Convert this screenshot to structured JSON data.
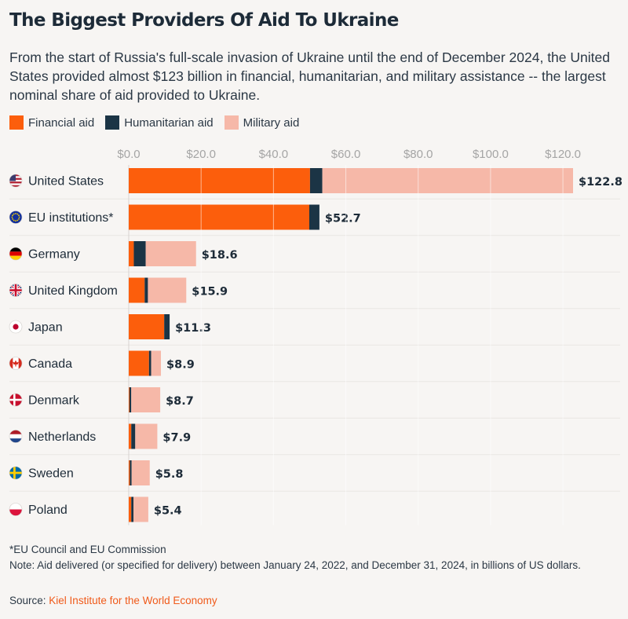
{
  "title": "The Biggest Providers Of Aid To Ukraine",
  "subtitle": "From the start of Russia's full-scale invasion of Ukraine until the end of December 2024, the United States provided almost $123 billion in financial, humanitarian, and military assistance -- the largest nominal share of aid provided to Ukraine.",
  "legend": [
    {
      "label": "Financial aid",
      "color": "#fc5e0c"
    },
    {
      "label": "Humanitarian aid",
      "color": "#1b3445"
    },
    {
      "label": "Military aid",
      "color": "#f6b8a8"
    }
  ],
  "chart_data": {
    "type": "bar",
    "orientation": "horizontal",
    "stacked": true,
    "categories": [
      "United States",
      "EU institutions*",
      "Germany",
      "United Kingdom",
      "Japan",
      "Canada",
      "Denmark",
      "Netherlands",
      "Sweden",
      "Poland"
    ],
    "flag_icons": [
      "us-flag-icon",
      "eu-flag-icon",
      "germany-flag-icon",
      "uk-flag-icon",
      "japan-flag-icon",
      "canada-flag-icon",
      "denmark-flag-icon",
      "netherlands-flag-icon",
      "sweden-flag-icon",
      "poland-flag-icon"
    ],
    "series": [
      {
        "name": "Financial aid",
        "color": "#fc5e0c",
        "values": [
          50.1,
          49.9,
          1.4,
          4.4,
          9.8,
          5.6,
          0.2,
          0.7,
          0.3,
          0.7
        ]
      },
      {
        "name": "Humanitarian aid",
        "color": "#1b3445",
        "values": [
          3.4,
          2.8,
          3.3,
          0.9,
          1.5,
          0.6,
          0.5,
          1.1,
          0.5,
          0.6
        ]
      },
      {
        "name": "Military aid",
        "color": "#f6b8a8",
        "values": [
          69.3,
          0.0,
          13.9,
          10.6,
          0.0,
          2.7,
          8.0,
          6.1,
          5.0,
          4.1
        ]
      }
    ],
    "totals": [
      122.8,
      52.7,
      18.6,
      15.9,
      11.3,
      8.9,
      8.7,
      7.9,
      5.8,
      5.4
    ],
    "total_labels": [
      "$122.8",
      "$52.7",
      "$18.6",
      "$15.9",
      "$11.3",
      "$8.9",
      "$8.7",
      "$7.9",
      "$5.8",
      "$5.4"
    ],
    "xticks": [
      0,
      20,
      40,
      60,
      80,
      100,
      120
    ],
    "xtick_labels": [
      "$0.0",
      "$20.0",
      "$40.0",
      "$60.0",
      "$80.0",
      "$100.0",
      "$120.0"
    ],
    "xlim": [
      0,
      122.8
    ],
    "grid": true,
    "legend_position": "top-left"
  },
  "footnote_1": "*EU Council and EU Commission",
  "footnote_2": "Note: Aid delivered (or specified for delivery) between January 24, 2022, and December 31, 2024, in billions of US dollars.",
  "source_prefix": "Source:",
  "source_link": "Kiel Institute for the World Economy"
}
